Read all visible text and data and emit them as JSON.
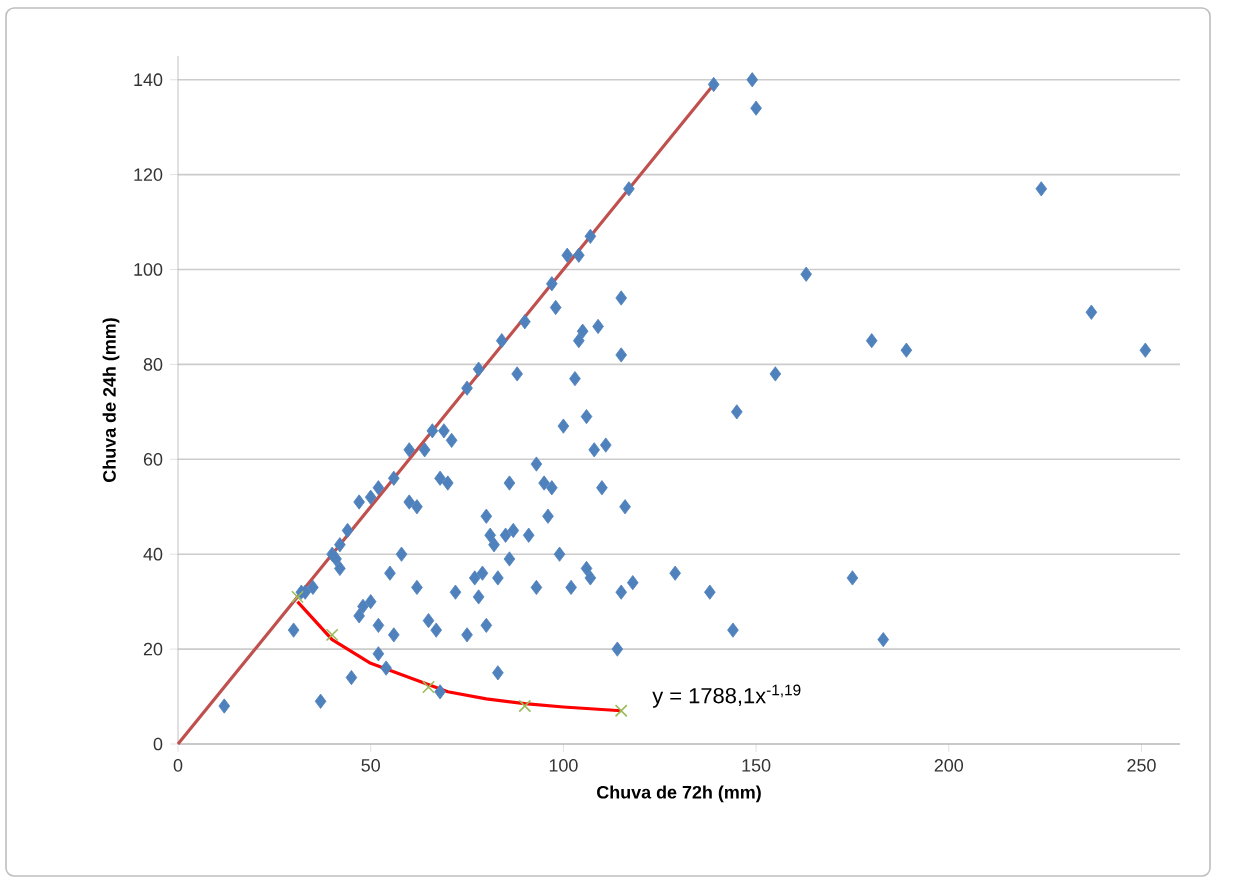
{
  "chart_data": {
    "type": "scatter",
    "xlabel": "Chuva de 72h (mm)",
    "ylabel": "Chuva de 24h (mm)",
    "xlim": [
      0,
      260
    ],
    "ylim": [
      0,
      145
    ],
    "xticks": [
      0,
      50,
      100,
      150,
      200,
      250
    ],
    "yticks": [
      0,
      20,
      40,
      60,
      80,
      100,
      120,
      140
    ],
    "grid": "y",
    "legend": false,
    "annotations": [
      {
        "text": "y = 1788,1x$^{-1,19}$",
        "x": 115,
        "y": 7
      }
    ],
    "series": [
      {
        "marker": "diamond",
        "color": "#4f81bd",
        "x": [
          12,
          139,
          117,
          107,
          104,
          101,
          97,
          90,
          84,
          78,
          75,
          69,
          66,
          64,
          60,
          56,
          52,
          50,
          47,
          44,
          42,
          40,
          35,
          32,
          149,
          150,
          163,
          224,
          237,
          251,
          189,
          180,
          155,
          145,
          175,
          183,
          144,
          129,
          138,
          118,
          115,
          114,
          116,
          115,
          115,
          110,
          108,
          111,
          106,
          105,
          109,
          103,
          100,
          98,
          104,
          97,
          96,
          93,
          95,
          99,
          102,
          106,
          107,
          91,
          93,
          88,
          86,
          86,
          83,
          80,
          81,
          82,
          85,
          87,
          79,
          77,
          78,
          75,
          72,
          83,
          80,
          70,
          71,
          68,
          67,
          65,
          68,
          62,
          58,
          55,
          56,
          54,
          52,
          50,
          47,
          45,
          41,
          42,
          37,
          30,
          33,
          52,
          48,
          60,
          62
        ],
        "values": [
          8,
          139,
          117,
          107,
          103,
          103,
          97,
          89,
          85,
          79,
          75,
          66,
          66,
          62,
          62,
          56,
          54,
          52,
          51,
          45,
          42,
          40,
          33,
          32,
          140,
          134,
          99,
          117,
          91,
          83,
          83,
          85,
          78,
          70,
          35,
          22,
          24,
          36,
          32,
          34,
          32,
          20,
          50,
          82,
          94,
          54,
          62,
          63,
          69,
          87,
          88,
          77,
          67,
          92,
          85,
          54,
          48,
          59,
          55,
          40,
          33,
          37,
          35,
          44,
          33,
          78,
          55,
          39,
          35,
          48,
          44,
          42,
          44,
          45,
          36,
          35,
          31,
          23,
          32,
          15,
          25,
          55,
          64,
          56,
          24,
          26,
          11,
          33,
          40,
          36,
          23,
          16,
          19,
          30,
          27,
          14,
          39,
          37,
          9,
          24,
          32,
          25,
          29,
          51,
          50
        ]
      },
      {
        "type": "line",
        "marker": "none",
        "line_style": "solid",
        "color": "#c0504d",
        "x": [
          0,
          139
        ],
        "values": [
          0,
          139
        ]
      },
      {
        "type": "line",
        "marker": "none",
        "line_style": "solid",
        "color": "#ff0000",
        "x": [
          31,
          40,
          50,
          60,
          70,
          80,
          90,
          100,
          115
        ],
        "values": [
          30,
          22,
          17,
          14,
          11,
          9.5,
          8.5,
          7.8,
          7
        ]
      },
      {
        "type": "scatter",
        "marker": "cross",
        "color": "#9bbb59",
        "x": [
          31,
          40,
          65,
          90,
          115
        ],
        "values": [
          31,
          23,
          12,
          8,
          7
        ]
      }
    ]
  }
}
